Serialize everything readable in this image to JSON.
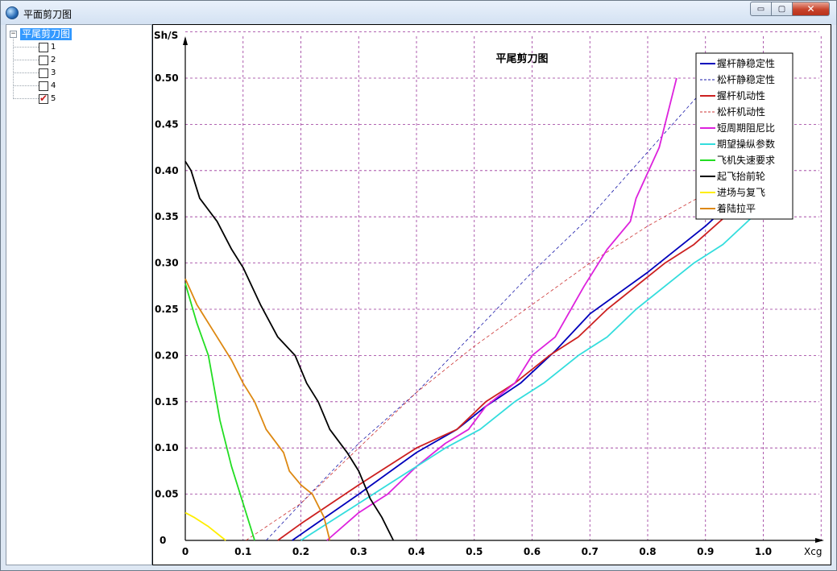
{
  "window": {
    "title": "平面剪刀图",
    "controls": {
      "minimize": "▭",
      "maximize": "▢",
      "close": "✕"
    }
  },
  "tree": {
    "root": {
      "label": "平尾剪刀图",
      "expander": "−"
    },
    "items": [
      {
        "label": "1",
        "checked": false
      },
      {
        "label": "2",
        "checked": false
      },
      {
        "label": "3",
        "checked": false
      },
      {
        "label": "4",
        "checked": false
      },
      {
        "label": "5",
        "checked": true
      }
    ]
  },
  "chart_data": {
    "type": "line",
    "title": "平尾剪刀图",
    "xlabel": "Xcg",
    "ylabel": "Sh/S",
    "xlim": [
      0,
      1.0
    ],
    "ylim": [
      0,
      0.55
    ],
    "x_ticks": [
      "0",
      "0.1",
      "0.2",
      "0.3",
      "0.4",
      "0.5",
      "0.6",
      "0.7",
      "0.8",
      "0.9",
      "1.0"
    ],
    "y_ticks": [
      "0",
      "0.05",
      "0.10",
      "0.15",
      "0.20",
      "0.25",
      "0.30",
      "0.35",
      "0.40",
      "0.45",
      "0.50"
    ],
    "grid": true,
    "grid_color": "#993399",
    "legend_position": "top-right",
    "series": [
      {
        "name": "握杆静稳定性",
        "color": "#0000bb",
        "dash": "solid",
        "points": [
          [
            0.185,
            0
          ],
          [
            0.3,
            0.05
          ],
          [
            0.4,
            0.095
          ],
          [
            0.47,
            0.12
          ],
          [
            0.52,
            0.145
          ],
          [
            0.58,
            0.17
          ],
          [
            0.64,
            0.205
          ],
          [
            0.7,
            0.245
          ],
          [
            0.8,
            0.29
          ],
          [
            0.9,
            0.34
          ],
          [
            0.97,
            0.38
          ]
        ]
      },
      {
        "name": "松杆静稳定性",
        "color": "#1a1aaa",
        "dash": "dashed",
        "points": [
          [
            0.14,
            0
          ],
          [
            0.2,
            0.04
          ],
          [
            0.3,
            0.105
          ],
          [
            0.4,
            0.16
          ],
          [
            0.5,
            0.225
          ],
          [
            0.6,
            0.29
          ],
          [
            0.7,
            0.35
          ],
          [
            0.8,
            0.42
          ],
          [
            0.9,
            0.49
          ]
        ]
      },
      {
        "name": "握杆机动性",
        "color": "#cc2020",
        "dash": "solid",
        "points": [
          [
            0.16,
            0
          ],
          [
            0.2,
            0.018
          ],
          [
            0.3,
            0.06
          ],
          [
            0.4,
            0.1
          ],
          [
            0.47,
            0.12
          ],
          [
            0.52,
            0.15
          ],
          [
            0.57,
            0.17
          ],
          [
            0.63,
            0.2
          ],
          [
            0.68,
            0.22
          ],
          [
            0.73,
            0.25
          ],
          [
            0.83,
            0.3
          ],
          [
            0.88,
            0.32
          ],
          [
            0.97,
            0.37
          ],
          [
            1.0,
            0.385
          ]
        ]
      },
      {
        "name": "松杆机动性",
        "color": "#cc3333",
        "dash": "dashed",
        "points": [
          [
            0.105,
            0
          ],
          [
            0.2,
            0.04
          ],
          [
            0.3,
            0.1
          ],
          [
            0.4,
            0.16
          ],
          [
            0.5,
            0.21
          ],
          [
            0.6,
            0.255
          ],
          [
            0.7,
            0.3
          ],
          [
            0.8,
            0.34
          ],
          [
            0.9,
            0.375
          ]
        ]
      },
      {
        "name": "短周期阻尼比",
        "color": "#dd22dd",
        "dash": "solid",
        "points": [
          [
            0.245,
            0
          ],
          [
            0.3,
            0.03
          ],
          [
            0.35,
            0.05
          ],
          [
            0.4,
            0.08
          ],
          [
            0.45,
            0.105
          ],
          [
            0.49,
            0.12
          ],
          [
            0.52,
            0.145
          ],
          [
            0.57,
            0.17
          ],
          [
            0.6,
            0.2
          ],
          [
            0.64,
            0.22
          ],
          [
            0.69,
            0.275
          ],
          [
            0.73,
            0.315
          ],
          [
            0.77,
            0.345
          ],
          [
            0.78,
            0.37
          ],
          [
            0.82,
            0.425
          ],
          [
            0.85,
            0.5
          ]
        ]
      },
      {
        "name": "期望操纵参数",
        "color": "#33dddd",
        "dash": "solid",
        "points": [
          [
            0.2,
            0
          ],
          [
            0.3,
            0.04
          ],
          [
            0.4,
            0.08
          ],
          [
            0.45,
            0.1
          ],
          [
            0.51,
            0.12
          ],
          [
            0.57,
            0.15
          ],
          [
            0.62,
            0.17
          ],
          [
            0.68,
            0.2
          ],
          [
            0.73,
            0.22
          ],
          [
            0.78,
            0.25
          ],
          [
            0.88,
            0.3
          ],
          [
            0.93,
            0.32
          ],
          [
            0.99,
            0.355
          ]
        ]
      },
      {
        "name": "飞机失速要求",
        "color": "#22dd22",
        "dash": "solid",
        "points": [
          [
            0,
            0.278
          ],
          [
            0.02,
            0.235
          ],
          [
            0.04,
            0.2
          ],
          [
            0.05,
            0.165
          ],
          [
            0.06,
            0.13
          ],
          [
            0.08,
            0.08
          ],
          [
            0.1,
            0.04
          ],
          [
            0.12,
            0
          ]
        ]
      },
      {
        "name": "起飞抬前轮",
        "color": "#000000",
        "dash": "solid",
        "points": [
          [
            0,
            0.41
          ],
          [
            0.01,
            0.4
          ],
          [
            0.025,
            0.37
          ],
          [
            0.055,
            0.345
          ],
          [
            0.08,
            0.315
          ],
          [
            0.1,
            0.295
          ],
          [
            0.13,
            0.255
          ],
          [
            0.16,
            0.22
          ],
          [
            0.19,
            0.2
          ],
          [
            0.21,
            0.17
          ],
          [
            0.23,
            0.15
          ],
          [
            0.25,
            0.12
          ],
          [
            0.28,
            0.095
          ],
          [
            0.3,
            0.075
          ],
          [
            0.32,
            0.045
          ],
          [
            0.34,
            0.025
          ],
          [
            0.36,
            0
          ]
        ]
      },
      {
        "name": "进场与复飞",
        "color": "#ffee00",
        "dash": "solid",
        "points": [
          [
            0,
            0.03
          ],
          [
            0.015,
            0.025
          ],
          [
            0.04,
            0.015
          ],
          [
            0.07,
            0
          ]
        ]
      },
      {
        "name": "着陆拉平",
        "color": "#dd8811",
        "dash": "solid",
        "points": [
          [
            0,
            0.283
          ],
          [
            0.02,
            0.255
          ],
          [
            0.05,
            0.225
          ],
          [
            0.08,
            0.195
          ],
          [
            0.1,
            0.17
          ],
          [
            0.12,
            0.15
          ],
          [
            0.14,
            0.12
          ],
          [
            0.17,
            0.095
          ],
          [
            0.18,
            0.075
          ],
          [
            0.2,
            0.06
          ],
          [
            0.22,
            0.05
          ],
          [
            0.24,
            0.025
          ],
          [
            0.25,
            0
          ]
        ]
      }
    ]
  }
}
